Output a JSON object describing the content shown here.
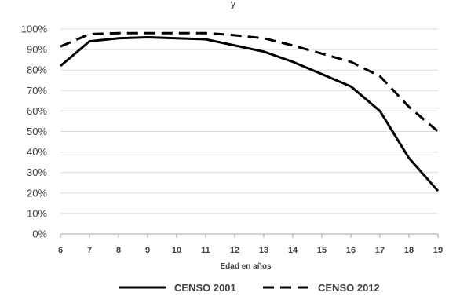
{
  "chart_data": {
    "type": "line",
    "title_fragment": "y",
    "xlabel": "Edad en años",
    "ylabel": "",
    "x": [
      6,
      7,
      8,
      9,
      10,
      11,
      12,
      13,
      14,
      15,
      16,
      17,
      18,
      19
    ],
    "ylim": [
      0,
      100
    ],
    "y_ticks": [
      "0%",
      "10%",
      "20%",
      "30%",
      "40%",
      "50%",
      "60%",
      "70%",
      "80%",
      "90%",
      "100%"
    ],
    "grid": "horizontal",
    "legend_position": "bottom",
    "series": [
      {
        "name": "CENSO 2001",
        "style": "solid",
        "color": "#000000",
        "values": [
          82,
          94,
          95.5,
          96,
          95.5,
          95,
          92,
          89,
          84,
          78,
          72,
          60,
          37,
          21
        ]
      },
      {
        "name": "CENSO 2012",
        "style": "dashed",
        "color": "#000000",
        "values": [
          91.5,
          97.5,
          98,
          98,
          98,
          98,
          97,
          95.5,
          92,
          88,
          84,
          77,
          62,
          50
        ]
      }
    ]
  }
}
